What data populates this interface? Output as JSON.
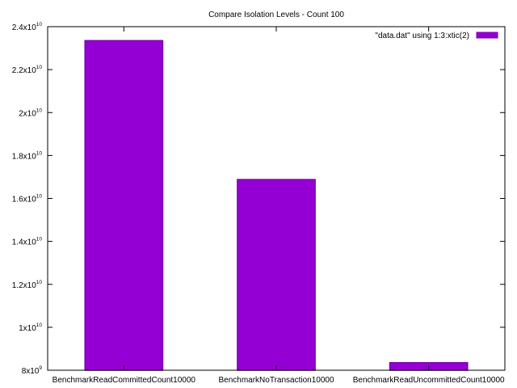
{
  "chart_data": {
    "type": "bar",
    "title": "Compare Isolation Levels - Count 100",
    "categories": [
      "BenchmarkReadCommittedCount10000",
      "BenchmarkNoTransaction10000",
      "BenchmarkReadUncommittedCount10000"
    ],
    "series": [
      {
        "name": "\"data.dat\" using 1:3:xtic(2)",
        "values": [
          23350000000,
          16880000000,
          8350000000
        ],
        "color": "#9400d3"
      }
    ],
    "ylim": [
      8000000000,
      24000000000
    ],
    "yticks": [
      {
        "value": 8000000000,
        "base": "8x10",
        "exp": "9"
      },
      {
        "value": 10000000000,
        "base": "1x10",
        "exp": "10"
      },
      {
        "value": 12000000000,
        "base": "1.2x10",
        "exp": "10"
      },
      {
        "value": 14000000000,
        "base": "1.4x10",
        "exp": "10"
      },
      {
        "value": 16000000000,
        "base": "1.6x10",
        "exp": "10"
      },
      {
        "value": 18000000000,
        "base": "1.8x10",
        "exp": "10"
      },
      {
        "value": 20000000000,
        "base": "2x10",
        "exp": "10"
      },
      {
        "value": 22000000000,
        "base": "2.2x10",
        "exp": "10"
      },
      {
        "value": 24000000000,
        "base": "2.4x10",
        "exp": "10"
      }
    ],
    "xlabel": "",
    "ylabel": "",
    "legend_position": "top-right",
    "grid": false
  }
}
